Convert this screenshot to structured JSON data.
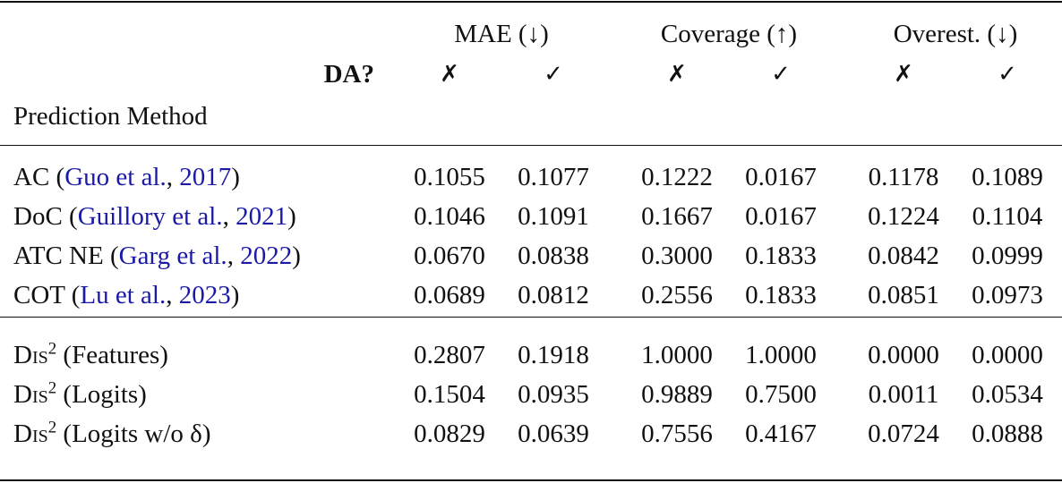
{
  "header": {
    "groups": [
      "MAE (↓)",
      "Coverage (↑)",
      "Overest. (↓)"
    ],
    "da_label": "DA?",
    "da_marks": [
      "✗",
      "✓",
      "✗",
      "✓",
      "✗",
      "✓"
    ],
    "row_label": "Prediction Method"
  },
  "colors": {
    "citation_link": "#1a1aa6"
  },
  "baselines": [
    {
      "method": "AC",
      "cite_authors": "Guo et al.",
      "cite_year": "2017",
      "values": [
        "0.1055",
        "0.1077",
        "0.1222",
        "0.0167",
        "0.1178",
        "0.1089"
      ]
    },
    {
      "method": "DoC",
      "cite_authors": "Guillory et al.",
      "cite_year": "2021",
      "values": [
        "0.1046",
        "0.1091",
        "0.1667",
        "0.0167",
        "0.1224",
        "0.1104"
      ]
    },
    {
      "method": "ATC NE",
      "cite_authors": "Garg et al.",
      "cite_year": "2022",
      "values": [
        "0.0670",
        "0.0838",
        "0.3000",
        "0.1833",
        "0.0842",
        "0.0999"
      ]
    },
    {
      "method": "COT",
      "cite_authors": "Lu et al.",
      "cite_year": "2023",
      "values": [
        "0.0689",
        "0.0812",
        "0.2556",
        "0.1833",
        "0.0851",
        "0.0973"
      ]
    }
  ],
  "ours": [
    {
      "name": "Dis",
      "sup": "2",
      "variant": "(Features)",
      "values": [
        "0.2807",
        "0.1918",
        "1.0000",
        "1.0000",
        "0.0000",
        "0.0000"
      ]
    },
    {
      "name": "Dis",
      "sup": "2",
      "variant": "(Logits)",
      "values": [
        "0.1504",
        "0.0935",
        "0.9889",
        "0.7500",
        "0.0011",
        "0.0534"
      ]
    },
    {
      "name": "Dis",
      "sup": "2",
      "variant": "(Logits w/o δ)",
      "values": [
        "0.0829",
        "0.0639",
        "0.7556",
        "0.4167",
        "0.0724",
        "0.0888"
      ]
    }
  ]
}
